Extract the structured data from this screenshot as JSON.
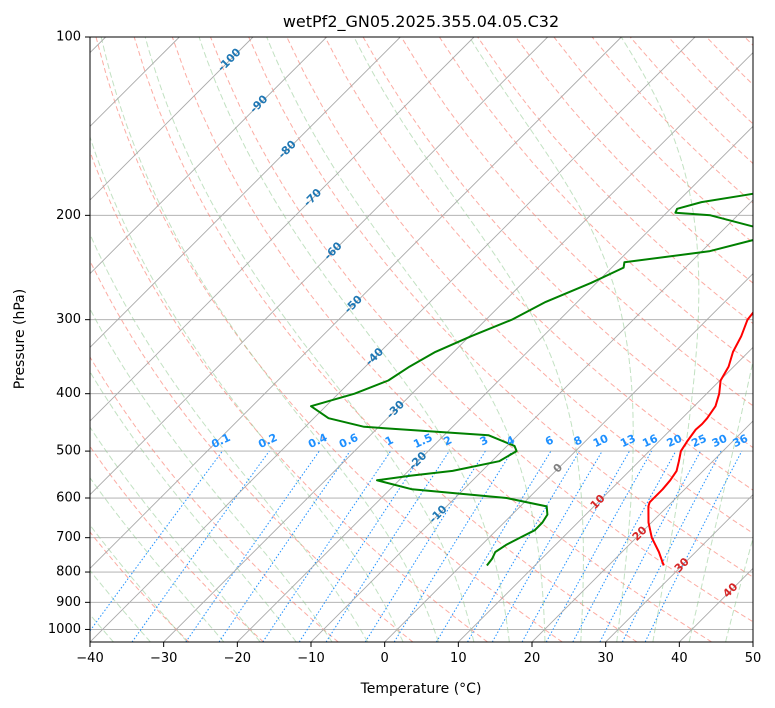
{
  "chart_data": {
    "type": "skew-t",
    "title": "wetPf2_GN05.2025.355.04.05.C32",
    "xlabel": "Temperature (°C)",
    "ylabel": "Pressure (hPa)",
    "xlim": [
      -40,
      50
    ],
    "ylim": [
      1050,
      100
    ],
    "x_ticks": [
      -40,
      -30,
      -20,
      -10,
      0,
      10,
      20,
      30,
      40,
      50
    ],
    "x_tick_labels": [
      "−40",
      "−30",
      "−20",
      "−10",
      "0",
      "10",
      "20",
      "30",
      "40",
      "50"
    ],
    "y_ticks": [
      100,
      200,
      300,
      400,
      500,
      600,
      700,
      800,
      900,
      1000
    ],
    "y_tick_labels": [
      "100",
      "200",
      "300",
      "400",
      "500",
      "600",
      "700",
      "800",
      "900",
      "1000"
    ],
    "grid": true,
    "colors": {
      "temperature": "#ff0000",
      "dewpoint": "#008000",
      "isotherm": "#a9a9a9",
      "dry_adiabat": "#fa8072",
      "moist_adiabat": "#90c890",
      "mixing_ratio": "#1e90ff",
      "isotherm_label": "#1f77b4",
      "mixing_label": "#1e90ff",
      "adiabat_label": "#d62728",
      "zero_label": "#808080"
    },
    "series": [
      {
        "name": "Temperature",
        "pressure": [
          780,
          740,
          700,
          660,
          620,
          610,
          580,
          560,
          540,
          520,
          500,
          480,
          460,
          450,
          440,
          420,
          400,
          380,
          360,
          340,
          320,
          300,
          280,
          260,
          240,
          230,
          220,
          210,
          200,
          190,
          180,
          170,
          160,
          150,
          140,
          130,
          120,
          115,
          110,
          105,
          100
        ],
        "values": [
          27.5,
          25.0,
          22.1,
          19.6,
          17.4,
          17.0,
          17.0,
          16.8,
          16.4,
          15.4,
          14.3,
          13.8,
          13.4,
          13.5,
          13.4,
          12.9,
          11.7,
          10.1,
          9.3,
          7.9,
          6.9,
          5.5,
          5.0,
          4.6,
          5.0,
          5.4,
          6.0,
          6.6,
          6.9,
          7.0,
          6.9,
          6.5,
          6.3,
          6.4,
          6.8,
          6.8,
          6.7,
          6.7,
          6.7,
          6.3,
          6.1
        ]
      },
      {
        "name": "Dewpoint",
        "pressure": [
          780,
          760,
          740,
          720,
          700,
          680,
          660,
          640,
          620,
          600,
          580,
          560,
          550,
          540,
          520,
          500,
          490,
          470,
          455,
          440,
          420,
          400,
          380,
          360,
          340,
          320,
          300,
          280,
          260,
          245,
          240,
          230,
          220,
          210,
          200,
          198,
          195,
          190,
          185,
          180,
          177,
          170,
          160,
          150,
          140,
          130,
          120,
          115,
          110,
          105,
          100
        ],
        "values": [
          3.5,
          3.3,
          2.8,
          3.3,
          4.2,
          5.2,
          5.2,
          4.8,
          3.6,
          -3.0,
          -17.0,
          -23.0,
          -19.0,
          -14.0,
          -9.0,
          -8.0,
          -9.0,
          -14.0,
          -32.0,
          -38.0,
          -42.0,
          -37.8,
          -35.0,
          -34.0,
          -32.5,
          -29.8,
          -26.5,
          -24.3,
          -20.7,
          -18.4,
          -19.0,
          -9.0,
          -4.5,
          -5.5,
          -13.7,
          -18.8,
          -19.1,
          -16.7,
          -11.9,
          -6.9,
          -2.4,
          -2.7,
          -4.4,
          -4.4,
          -2.9,
          -3.1,
          -3.5,
          -2.7,
          -1.4,
          2.3,
          3.9
        ]
      }
    ],
    "isotherm_labels": [
      "-100",
      "-90",
      "-80",
      "-70",
      "-60",
      "-50",
      "-40",
      "-30",
      "-20",
      "-10"
    ],
    "mixing_ratio_labels": [
      "0.1",
      "0.2",
      "0.4",
      "0.6",
      "1",
      "1.5",
      "2",
      "3",
      "4",
      "6",
      "8",
      "10",
      "13",
      "16",
      "20",
      "25",
      "30",
      "36"
    ],
    "dry_adiabat_labels": [
      "0",
      "10",
      "20",
      "30",
      "40"
    ]
  }
}
